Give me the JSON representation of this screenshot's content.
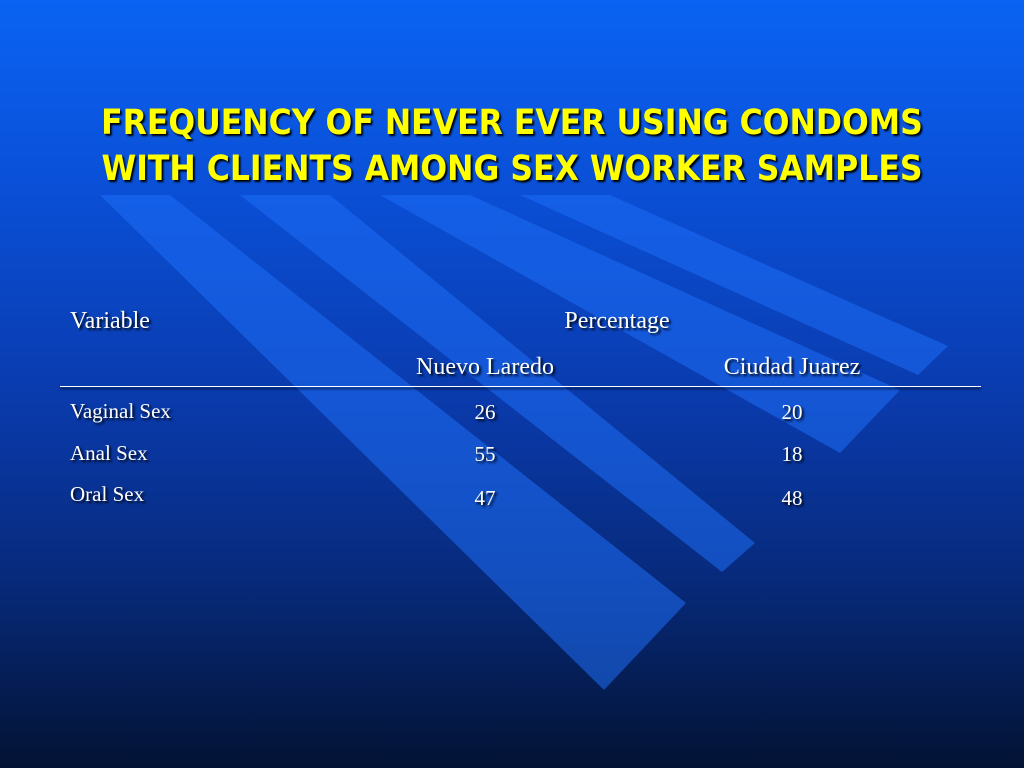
{
  "slide": {
    "title_line1": "FREQUENCY OF NEVER EVER USING CONDOMS",
    "title_line2": "WITH CLIENTS AMONG SEX WORKER SAMPLES",
    "title_color": "#ffff00",
    "background_top": "#0a63f3",
    "background_bottom": "#031334"
  },
  "table": {
    "header_variable": "Variable",
    "header_group": "Percentage",
    "columns": [
      "Nuevo Laredo",
      "Ciudad Juarez"
    ],
    "rows": [
      {
        "variable": "Vaginal Sex",
        "values": [
          "26",
          "20"
        ]
      },
      {
        "variable": "Anal Sex",
        "values": [
          "55",
          "18"
        ]
      },
      {
        "variable": "Oral Sex",
        "values": [
          "47",
          "48"
        ]
      }
    ]
  }
}
